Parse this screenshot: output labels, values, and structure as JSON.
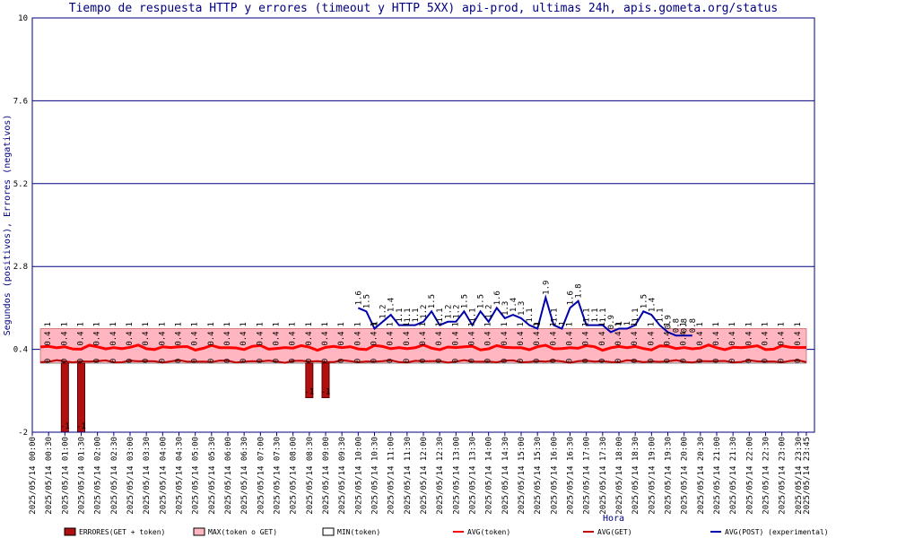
{
  "chart_data": {
    "type": "line",
    "title": "Tiempo de respuesta HTTP y errores (timeout y HTTP 5XX) api-prod, ultimas 24h, apis.gometa.org/status",
    "xlabel": "Hora",
    "ylabel": "Segundos (positivos), Errores (negativos)",
    "ylim": [
      -2,
      10
    ],
    "y_ticks": [
      "10",
      "7.6",
      "5.2",
      "2.8",
      "0.4",
      "-2"
    ],
    "x_ticks": [
      "2025/05/14 00:00",
      "2025/05/14 00:30",
      "2025/05/14 01:00",
      "2025/05/14 01:30",
      "2025/05/14 02:00",
      "2025/05/14 02:30",
      "2025/05/14 03:00",
      "2025/05/14 03:30",
      "2025/05/14 04:00",
      "2025/05/14 04:30",
      "2025/05/14 05:00",
      "2025/05/14 05:30",
      "2025/05/14 06:00",
      "2025/05/14 06:30",
      "2025/05/14 07:00",
      "2025/05/14 07:30",
      "2025/05/14 08:00",
      "2025/05/14 08:30",
      "2025/05/14 09:00",
      "2025/05/14 09:30",
      "2025/05/14 10:00",
      "2025/05/14 10:30",
      "2025/05/14 11:00",
      "2025/05/14 11:30",
      "2025/05/14 12:00",
      "2025/05/14 12:30",
      "2025/05/14 13:00",
      "2025/05/14 13:30",
      "2025/05/14 14:00",
      "2025/05/14 14:30",
      "2025/05/14 15:00",
      "2025/05/14 15:30",
      "2025/05/14 16:00",
      "2025/05/14 16:30",
      "2025/05/14 17:00",
      "2025/05/14 17:30",
      "2025/05/14 18:00",
      "2025/05/14 18:30",
      "2025/05/14 19:00",
      "2025/05/14 19:30",
      "2025/05/14 20:00",
      "2025/05/14 20:30",
      "2025/05/14 21:00",
      "2025/05/14 21:30",
      "2025/05/14 22:00",
      "2025/05/14 22:30",
      "2025/05/14 23:00",
      "2025/05/14 23:30",
      "2025/05/14 23:45"
    ],
    "grid": true,
    "legend_placement": "bottom",
    "series": [
      {
        "name": "ERRORES(GET + token)",
        "color": "#b01010",
        "kind": "bar",
        "x_hours": [
          1.0,
          1.5,
          8.5,
          9.0
        ],
        "values": [
          -2,
          -2,
          -1,
          -1
        ]
      },
      {
        "name": "MAX(token o GET)",
        "color": "#ffb6c1",
        "kind": "area",
        "value": 1.0
      },
      {
        "name": "MIN(token)",
        "color": "#ffffff",
        "kind": "area",
        "value": 0.0
      },
      {
        "name": "AVG(token)",
        "color": "#ff0000",
        "kind": "line",
        "base": 0.45,
        "amplitude": 0.08
      },
      {
        "name": "AVG(GET)",
        "color": "#c00000",
        "kind": "line",
        "base": 0.05,
        "amplitude": 0.04
      },
      {
        "name": "AVG(POST) (experimental)",
        "color": "#0000aa",
        "kind": "line",
        "x_hours": [
          10.0,
          10.25,
          10.5,
          10.75,
          11.0,
          11.25,
          11.5,
          11.75,
          12.0,
          12.25,
          12.5,
          12.75,
          13.0,
          13.25,
          13.5,
          13.75,
          14.0,
          14.25,
          14.5,
          14.75,
          15.0,
          15.25,
          15.5,
          15.75,
          16.0,
          16.25,
          16.5,
          16.75,
          17.0,
          17.25,
          17.5,
          17.75,
          18.0,
          18.25,
          18.5,
          18.75,
          19.0,
          19.25,
          19.5,
          19.75,
          20.0,
          20.25
        ],
        "values": [
          1.6,
          1.5,
          1.0,
          1.2,
          1.4,
          1.1,
          1.1,
          1.1,
          1.2,
          1.5,
          1.1,
          1.2,
          1.2,
          1.5,
          1.1,
          1.5,
          1.2,
          1.6,
          1.3,
          1.4,
          1.3,
          1.1,
          1.0,
          1.9,
          1.1,
          1.0,
          1.6,
          1.8,
          1.1,
          1.1,
          1.1,
          0.9,
          1.0,
          1.0,
          1.1,
          1.5,
          1.4,
          1.1,
          0.9,
          0.8,
          0.8,
          0.8
        ]
      }
    ],
    "data_labels": {
      "avg_token_label": "0.4",
      "avg_get_label": "0",
      "max_label": "1",
      "error_label": "-1"
    }
  }
}
